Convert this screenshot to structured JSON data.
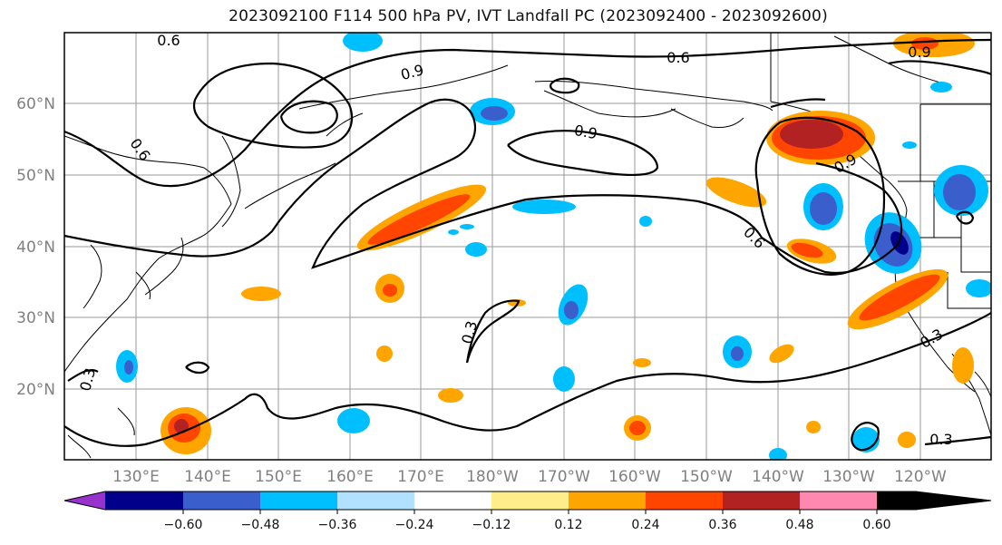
{
  "title": "2023092100 F114 500 hPa PV, IVT Landfall PC (2023092400 - 2023092600)",
  "lat_labels": [
    "60°N",
    "50°N",
    "40°N",
    "30°N",
    "20°N"
  ],
  "lon_labels": [
    "130°E",
    "140°E",
    "150°E",
    "160°E",
    "170°E",
    "180°W",
    "170°W",
    "160°W",
    "150°W",
    "140°W",
    "130°W",
    "120°W"
  ],
  "contour_labels": [
    "0.6",
    "0.9",
    "0.6",
    "0.9",
    "0.9",
    "0.6",
    "0.6",
    "0.3",
    "0.3",
    "0.9",
    "0.3",
    "0.3"
  ],
  "colorbar": {
    "tick_labels": [
      "−0.60",
      "−0.48",
      "−0.36",
      "−0.24",
      "−0.12",
      "0.12",
      "0.24",
      "0.36",
      "0.48",
      "0.60"
    ],
    "colors": [
      "#9932cc",
      "#00008b",
      "#3a5fcd",
      "#00bfff",
      "#b2e0ff",
      "#ffffff",
      "#ffec8b",
      "#ffa500",
      "#ff4500",
      "#b22222",
      "#ff88b0"
    ]
  }
}
